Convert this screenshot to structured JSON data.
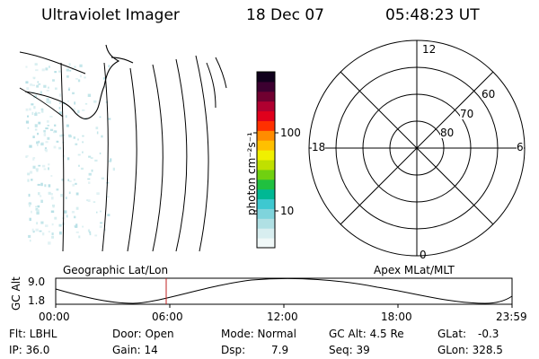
{
  "header": {
    "title": "Ultraviolet Imager",
    "date": "18 Dec 07",
    "time": "05:48:23 UT"
  },
  "colorbar": {
    "unit_label": "photon cm⁻²s⁻¹",
    "tick_labels": [
      "100",
      "10"
    ],
    "scale": "log",
    "colors": [
      "#f0f8f8",
      "#d8eef0",
      "#b0e0e4",
      "#7fd4dc",
      "#3ec8d0",
      "#00b894",
      "#20c040",
      "#70d010",
      "#c0e000",
      "#f0f000",
      "#ffc000",
      "#ff8c00",
      "#ff3000",
      "#e0001c",
      "#b00030",
      "#700030",
      "#3c0030",
      "#10001c"
    ]
  },
  "polar_plot": {
    "mlt_labels": {
      "top": "12",
      "bottom": "0",
      "left": "18",
      "right": "6"
    },
    "lat_labels": [
      "60",
      "70",
      "80"
    ]
  },
  "timeline": {
    "left_label": "Geographic Lat/Lon",
    "right_label": "Apex MLat/MLT",
    "y_axis_label": "GC Alt",
    "y_ticks": [
      "9.0",
      "1.8"
    ],
    "x_ticks": [
      "00:00",
      "06:00",
      "12:00",
      "18:00",
      "23:59"
    ],
    "marker_time": "05:48",
    "marker_color": "#c02020"
  },
  "status": {
    "filter": "Flt: LBHL",
    "ip": "IP: 36.0",
    "door": "Door: Open",
    "gain": "Gain: 14",
    "mode": "Mode: Normal",
    "dsp": "Dsp:",
    "dsp_value": "7.9",
    "gc_alt": "GC Alt: 4.5 Re",
    "seq": "Seq: 39",
    "glat": "GLat:",
    "glat_value": "-0.3",
    "glon": "GLon: 328.5"
  }
}
